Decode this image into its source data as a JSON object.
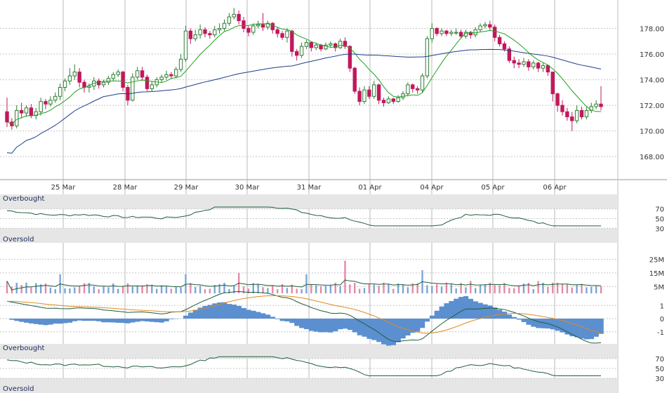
{
  "colors": {
    "up": "#2e7d32",
    "down": "#c2185b",
    "ma_short": "#22a022",
    "ma_long": "#1f3d8a",
    "grid": "#c8c8c8",
    "band": "#e6e6e6",
    "vol_up": "#7aa6d6",
    "vol_down": "#e48aa6",
    "macd_hist": "#5b8fd0",
    "signal": "#e08a1e",
    "osc_line": "#1f5e3a"
  },
  "chart_data": [
    {
      "type": "candlestick",
      "x_labels": [
        "25 Mar",
        "28 Mar",
        "29 Mar",
        "30 Mar",
        "31 Mar",
        "01 Apr",
        "04 Apr",
        "05 Apr",
        "06 Apr"
      ],
      "y_ticks": [
        "168.00",
        "170.00",
        "172.00",
        "174.00",
        "176.00",
        "178.00"
      ],
      "ylim": [
        166.2,
        180.0
      ],
      "grid": true,
      "candles": [
        [
          171.5,
          170.7,
          172.6,
          170.3
        ],
        [
          170.7,
          170.4,
          171.0,
          170.1
        ],
        [
          170.4,
          171.6,
          172.0,
          170.2
        ],
        [
          171.6,
          171.4,
          172.2,
          171.0
        ],
        [
          171.4,
          171.8,
          172.0,
          171.1
        ],
        [
          171.8,
          171.2,
          172.1,
          171.0
        ],
        [
          171.2,
          171.5,
          171.8,
          170.9
        ],
        [
          171.5,
          172.3,
          172.6,
          171.2
        ],
        [
          172.3,
          172.1,
          172.5,
          171.7
        ],
        [
          172.1,
          172.4,
          172.7,
          171.9
        ],
        [
          172.4,
          172.7,
          173.0,
          172.2
        ],
        [
          172.7,
          173.4,
          173.7,
          172.4
        ],
        [
          173.4,
          173.9,
          174.1,
          173.1
        ],
        [
          173.9,
          174.3,
          174.9,
          173.6
        ],
        [
          174.3,
          174.6,
          175.2,
          174.0
        ],
        [
          174.6,
          173.8,
          174.9,
          173.4
        ],
        [
          173.8,
          173.4,
          174.0,
          173.0
        ],
        [
          173.4,
          173.5,
          173.7,
          173.0
        ],
        [
          173.5,
          173.9,
          174.2,
          173.2
        ],
        [
          173.9,
          173.6,
          174.1,
          173.3
        ],
        [
          173.6,
          173.8,
          174.0,
          173.4
        ],
        [
          173.8,
          174.1,
          174.3,
          173.6
        ],
        [
          174.1,
          174.4,
          174.6,
          173.9
        ],
        [
          174.4,
          174.6,
          174.8,
          174.2
        ],
        [
          174.6,
          173.4,
          174.7,
          173.1
        ],
        [
          173.4,
          172.4,
          173.6,
          172.0
        ],
        [
          172.4,
          174.2,
          174.5,
          172.3
        ],
        [
          174.2,
          174.7,
          175.0,
          174.0
        ],
        [
          174.7,
          174.2,
          175.0,
          173.9
        ],
        [
          174.2,
          173.3,
          174.4,
          173.1
        ],
        [
          173.3,
          173.6,
          173.9,
          173.1
        ],
        [
          173.6,
          174.0,
          174.2,
          173.4
        ],
        [
          174.0,
          174.2,
          174.4,
          173.8
        ],
        [
          174.2,
          174.4,
          174.7,
          174.0
        ],
        [
          174.4,
          174.3,
          174.6,
          174.1
        ],
        [
          174.3,
          174.8,
          175.0,
          174.1
        ],
        [
          174.8,
          175.6,
          176.0,
          174.6
        ],
        [
          175.6,
          177.8,
          178.2,
          175.4
        ],
        [
          177.8,
          177.2,
          178.0,
          176.8
        ],
        [
          177.2,
          177.5,
          177.9,
          177.0
        ],
        [
          177.5,
          177.9,
          178.3,
          177.2
        ],
        [
          177.9,
          177.6,
          178.1,
          177.3
        ],
        [
          177.6,
          177.5,
          177.8,
          177.2
        ],
        [
          177.5,
          177.9,
          178.2,
          177.3
        ],
        [
          177.9,
          178.0,
          178.4,
          177.6
        ],
        [
          178.0,
          178.4,
          178.7,
          177.8
        ],
        [
          178.4,
          178.9,
          179.2,
          178.2
        ],
        [
          178.9,
          179.1,
          179.6,
          178.7
        ],
        [
          179.1,
          178.6,
          179.4,
          178.3
        ],
        [
          178.6,
          178.0,
          178.9,
          177.7
        ],
        [
          178.0,
          177.7,
          178.2,
          177.4
        ],
        [
          177.7,
          178.2,
          178.4,
          177.5
        ],
        [
          178.2,
          178.3,
          178.6,
          178.0
        ],
        [
          178.3,
          178.1,
          179.2,
          177.8
        ],
        [
          178.1,
          178.4,
          178.6,
          177.9
        ],
        [
          178.4,
          177.9,
          178.5,
          177.6
        ],
        [
          177.9,
          177.6,
          178.1,
          177.3
        ],
        [
          177.6,
          177.3,
          177.8,
          177.1
        ],
        [
          177.3,
          177.8,
          178.0,
          176.9
        ],
        [
          177.8,
          176.2,
          177.9,
          175.8
        ],
        [
          176.2,
          175.9,
          176.4,
          175.5
        ],
        [
          175.9,
          176.6,
          176.9,
          175.7
        ],
        [
          176.6,
          176.9,
          177.1,
          176.4
        ],
        [
          176.9,
          176.5,
          177.0,
          176.2
        ],
        [
          176.5,
          176.7,
          176.9,
          176.3
        ],
        [
          176.7,
          176.4,
          176.8,
          176.2
        ],
        [
          176.4,
          176.7,
          176.9,
          176.3
        ],
        [
          176.7,
          176.8,
          177.0,
          176.5
        ],
        [
          176.8,
          176.5,
          176.9,
          176.2
        ],
        [
          176.5,
          177.0,
          177.2,
          176.4
        ],
        [
          177.0,
          176.6,
          177.3,
          176.4
        ],
        [
          176.6,
          174.9,
          176.7,
          174.6
        ],
        [
          174.9,
          173.1,
          175.0,
          172.9
        ],
        [
          173.1,
          172.3,
          173.4,
          172.0
        ],
        [
          172.3,
          173.2,
          173.5,
          172.1
        ],
        [
          173.2,
          172.7,
          173.5,
          172.5
        ],
        [
          172.7,
          173.6,
          173.9,
          172.5
        ],
        [
          173.6,
          172.4,
          173.7,
          172.1
        ],
        [
          172.4,
          172.2,
          172.6,
          171.9
        ],
        [
          172.2,
          172.5,
          172.7,
          172.1
        ],
        [
          172.5,
          172.3,
          172.6,
          172.1
        ],
        [
          172.3,
          172.6,
          172.8,
          172.2
        ],
        [
          172.6,
          172.9,
          173.1,
          172.4
        ],
        [
          172.9,
          173.6,
          173.8,
          172.7
        ],
        [
          173.6,
          173.3,
          173.7,
          173.0
        ],
        [
          173.3,
          173.2,
          173.5,
          172.9
        ],
        [
          173.2,
          174.3,
          174.5,
          173.0
        ],
        [
          174.3,
          177.2,
          177.4,
          174.1
        ],
        [
          177.2,
          178.0,
          178.4,
          176.9
        ],
        [
          178.0,
          177.6,
          178.1,
          177.4
        ],
        [
          177.6,
          177.8,
          178.0,
          177.4
        ],
        [
          177.8,
          177.6,
          177.9,
          177.4
        ],
        [
          177.6,
          177.7,
          177.9,
          177.4
        ],
        [
          177.7,
          177.7,
          178.0,
          177.5
        ],
        [
          177.7,
          177.4,
          177.9,
          177.2
        ],
        [
          177.4,
          177.7,
          177.9,
          177.2
        ],
        [
          177.7,
          177.5,
          177.8,
          177.2
        ],
        [
          177.5,
          177.9,
          178.1,
          177.3
        ],
        [
          177.9,
          178.2,
          178.4,
          177.7
        ],
        [
          178.2,
          178.3,
          178.5,
          178.0
        ],
        [
          178.3,
          178.1,
          178.6,
          177.8
        ],
        [
          178.1,
          177.3,
          178.3,
          177.0
        ],
        [
          177.3,
          176.8,
          177.5,
          176.6
        ],
        [
          176.8,
          176.4,
          177.0,
          176.2
        ],
        [
          176.4,
          175.5,
          176.6,
          175.3
        ],
        [
          175.5,
          175.3,
          175.8,
          174.9
        ],
        [
          175.3,
          175.2,
          175.6,
          174.9
        ],
        [
          175.2,
          175.4,
          175.7,
          175.0
        ],
        [
          175.4,
          175.0,
          175.6,
          174.7
        ],
        [
          175.0,
          175.3,
          175.5,
          174.8
        ],
        [
          175.3,
          174.9,
          175.4,
          174.6
        ],
        [
          174.9,
          175.1,
          175.3,
          174.6
        ],
        [
          175.1,
          174.6,
          175.2,
          174.3
        ],
        [
          174.6,
          172.9,
          173.3,
          172.3
        ],
        [
          172.9,
          172.0,
          173.0,
          171.5
        ],
        [
          172.0,
          171.5,
          172.4,
          171.2
        ],
        [
          171.5,
          171.1,
          171.8,
          170.8
        ],
        [
          171.1,
          170.8,
          171.5,
          170.0
        ],
        [
          170.8,
          171.6,
          172.0,
          170.6
        ],
        [
          171.6,
          171.1,
          171.9,
          170.9
        ],
        [
          171.1,
          171.6,
          171.9,
          170.9
        ],
        [
          171.6,
          171.9,
          172.2,
          171.4
        ],
        [
          171.9,
          172.1,
          172.4,
          171.7
        ],
        [
          172.1,
          171.9,
          173.5,
          171.6
        ]
      ]
    },
    {
      "type": "line",
      "name": "Overbought",
      "second_label": "Oversold",
      "y_ticks": [
        "70",
        "50",
        "30"
      ],
      "ylim": [
        0,
        100
      ]
    },
    {
      "type": "bar",
      "y_ticks": [
        "25M",
        "15M",
        "5M"
      ],
      "ylim": [
        0,
        35
      ]
    },
    {
      "type": "area",
      "y_ticks": [
        "1",
        "0",
        "-1"
      ],
      "ylim": [
        -1.6,
        1.6
      ]
    },
    {
      "type": "line",
      "name": "Overbought",
      "second_label": "Oversold",
      "y_ticks": [
        "70",
        "50",
        "30"
      ],
      "ylim": [
        0,
        100
      ]
    }
  ]
}
